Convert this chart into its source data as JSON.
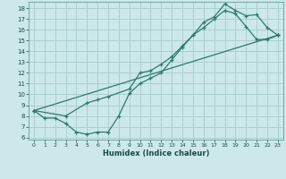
{
  "xlabel": "Humidex (Indice chaleur)",
  "bg_color": "#cce8ea",
  "grid_color": "#aacfd2",
  "line_color": "#2d7a6b",
  "xlim": [
    -0.5,
    23.5
  ],
  "ylim": [
    5.8,
    18.6
  ],
  "xticks": [
    0,
    1,
    2,
    3,
    4,
    5,
    6,
    7,
    8,
    9,
    10,
    11,
    12,
    13,
    14,
    15,
    16,
    17,
    18,
    19,
    20,
    21,
    22,
    23
  ],
  "yticks": [
    6,
    7,
    8,
    9,
    10,
    11,
    12,
    13,
    14,
    15,
    16,
    17,
    18
  ],
  "line1_x": [
    0,
    1,
    2,
    3,
    4,
    5,
    6,
    7,
    8,
    9,
    10,
    11,
    12,
    13,
    14,
    15,
    16,
    17,
    18,
    19,
    20,
    21,
    22,
    23
  ],
  "line1_y": [
    8.5,
    7.8,
    7.8,
    7.3,
    6.5,
    6.3,
    6.5,
    6.5,
    8.0,
    10.1,
    11.0,
    11.5,
    12.0,
    13.2,
    14.4,
    15.5,
    16.2,
    17.0,
    17.8,
    17.5,
    16.3,
    15.1,
    15.1,
    15.5
  ],
  "line2_x": [
    0,
    23
  ],
  "line2_y": [
    8.5,
    15.5
  ],
  "line3_x": [
    0,
    3,
    5,
    6,
    7,
    9,
    10,
    11,
    12,
    13,
    14,
    15,
    16,
    17,
    18,
    19,
    20,
    21,
    22,
    23
  ],
  "line3_y": [
    8.5,
    8.0,
    9.2,
    9.5,
    9.8,
    10.5,
    12.0,
    12.2,
    12.8,
    13.5,
    14.5,
    15.5,
    16.7,
    17.2,
    18.4,
    17.8,
    17.3,
    17.4,
    16.2,
    15.5
  ]
}
